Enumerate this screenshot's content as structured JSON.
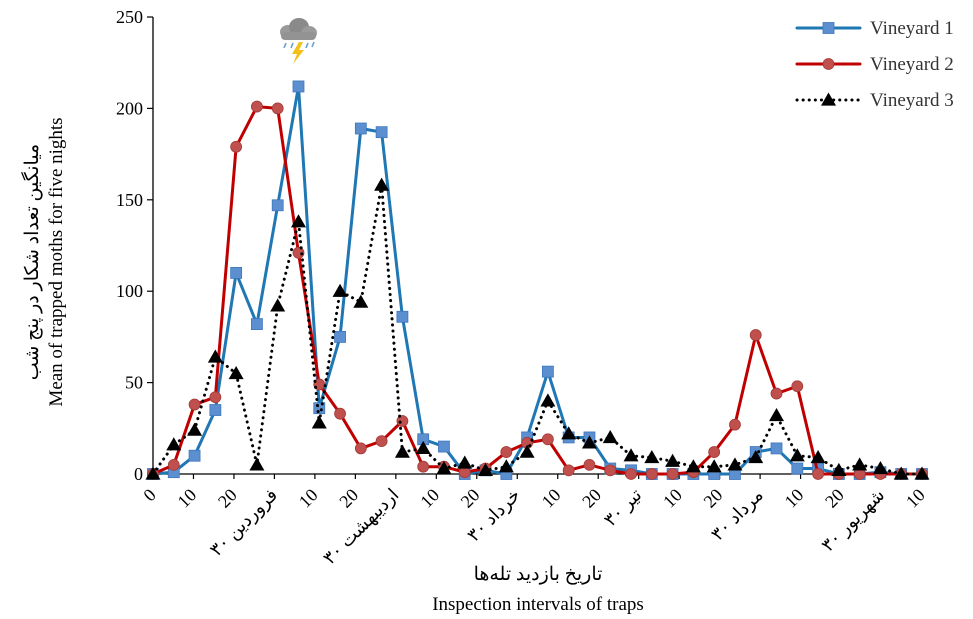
{
  "chart_data": {
    "type": "line",
    "x_tick_labels": [
      "0",
      "10",
      "20",
      "۳۰ فروردین",
      "10",
      "20",
      "۳۰ اردیبهشت",
      "10",
      "20",
      "۳۰ خرداد",
      "10",
      "20",
      "۳۰ تیر",
      "10",
      "20",
      "۳۰ مرداد",
      "10",
      "20",
      "۳۰ شهریور",
      "10"
    ],
    "xlabel_fa": "تاریخ بازدید تله‌ها",
    "xlabel_en": "Inspection intervals of traps",
    "ylabel_fa": "میانگین تعداد شکار در پنج شب",
    "ylabel_en": "Mean of trapped moths for five nights",
    "ylim": [
      0,
      250
    ],
    "y_ticks": [
      0,
      50,
      100,
      150,
      200,
      250
    ],
    "grid": false,
    "legend_position": "top-right",
    "annotation_icon": "storm-cloud-icon",
    "series": [
      {
        "name": "Vineyard 1",
        "color": "#1f77b4",
        "marker": "square",
        "line": "solid",
        "values": [
          0,
          1,
          10,
          35,
          110,
          82,
          147,
          212,
          36,
          75,
          189,
          187,
          86,
          19,
          15,
          0,
          2,
          0,
          20,
          56,
          20,
          20,
          3,
          2,
          0,
          0,
          0,
          0,
          0,
          12,
          14,
          3,
          3,
          0,
          0,
          1,
          0,
          0
        ]
      },
      {
        "name": "Vineyard 2",
        "color": "#c00000",
        "marker": "circle",
        "line": "solid",
        "values": [
          0,
          5,
          38,
          42,
          179,
          201,
          200,
          121,
          49,
          33,
          14,
          18,
          29,
          4,
          4,
          1,
          3,
          12,
          17,
          19,
          2,
          5,
          2,
          0,
          0,
          0,
          1,
          12,
          27,
          76,
          44,
          48,
          0,
          0,
          0,
          0,
          0,
          0
        ]
      },
      {
        "name": "Vineyard 3",
        "color": "#000000",
        "marker": "triangle",
        "line": "dotted",
        "values": [
          0,
          16,
          24,
          64,
          55,
          5,
          92,
          138,
          28,
          100,
          94,
          158,
          12,
          14,
          3,
          6,
          2,
          4,
          12,
          40,
          22,
          17,
          20,
          10,
          9,
          7,
          4,
          4,
          5,
          9,
          32,
          10,
          9,
          2,
          5,
          3,
          0,
          0
        ]
      }
    ]
  }
}
